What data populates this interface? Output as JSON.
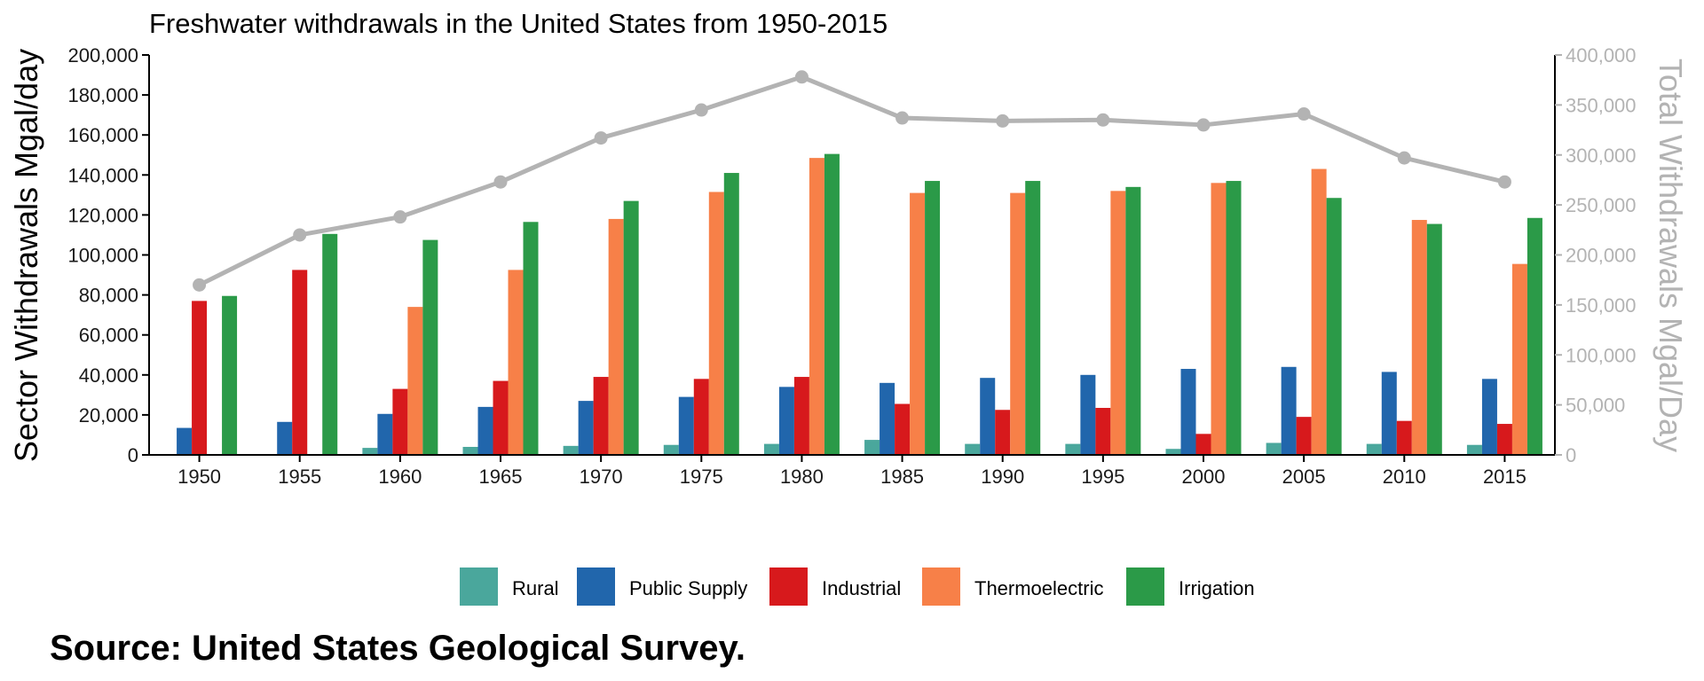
{
  "chart_data": {
    "type": "bar",
    "title": "Freshwater withdrawals in the United States from 1950-2015",
    "ylabel": "Sector Withdrawals Mgal/day",
    "ylabel_right": "Total Withdrawals Mgal/Day",
    "ylim": [
      0,
      200000
    ],
    "ylim_right": [
      0,
      400000
    ],
    "yticks": [
      "0",
      "20,000",
      "40,000",
      "60,000",
      "80,000",
      "100,000",
      "120,000",
      "140,000",
      "160,000",
      "180,000",
      "200,000"
    ],
    "yticks_right": [
      "0",
      "50,000",
      "100,000",
      "150,000",
      "200,000",
      "250,000",
      "300,000",
      "350,000",
      "400,000"
    ],
    "categories": [
      "1950",
      "1955",
      "1960",
      "1965",
      "1970",
      "1975",
      "1980",
      "1985",
      "1990",
      "1995",
      "2000",
      "2005",
      "2010",
      "2015"
    ],
    "series": [
      {
        "name": "Rural",
        "color": "#4aa79c",
        "values": [
          null,
          null,
          3500,
          4000,
          4500,
          5000,
          5500,
          7500,
          5500,
          5500,
          3000,
          6000,
          5500,
          5000
        ]
      },
      {
        "name": "Public Supply",
        "color": "#2166ac",
        "values": [
          13500,
          16500,
          20500,
          24000,
          27000,
          29000,
          34000,
          36000,
          38500,
          40000,
          43000,
          44000,
          41500,
          38000
        ]
      },
      {
        "name": "Industrial",
        "color": "#d7191c",
        "values": [
          77000,
          92500,
          33000,
          37000,
          39000,
          38000,
          39000,
          25500,
          22500,
          23500,
          10500,
          19000,
          17000,
          15500
        ]
      },
      {
        "name": "Thermoelectric",
        "color": "#f78048",
        "values": [
          null,
          null,
          74000,
          92500,
          118000,
          131500,
          148500,
          131000,
          131000,
          132000,
          136000,
          143000,
          117500,
          95500
        ]
      },
      {
        "name": "Irrigation",
        "color": "#2b9a48",
        "values": [
          79500,
          110500,
          107500,
          116500,
          127000,
          141000,
          150500,
          137000,
          137000,
          134000,
          137000,
          128500,
          115500,
          118500
        ]
      }
    ],
    "line_series": {
      "name": "Total",
      "axis": "right",
      "color": "#b3b3b3",
      "values": [
        170000,
        220000,
        238000,
        273000,
        317000,
        345000,
        378000,
        337000,
        334000,
        335000,
        330000,
        341000,
        297000,
        273000
      ]
    },
    "legend_position": "bottom",
    "grid": false
  },
  "source": "Source: United States Geological Survey."
}
